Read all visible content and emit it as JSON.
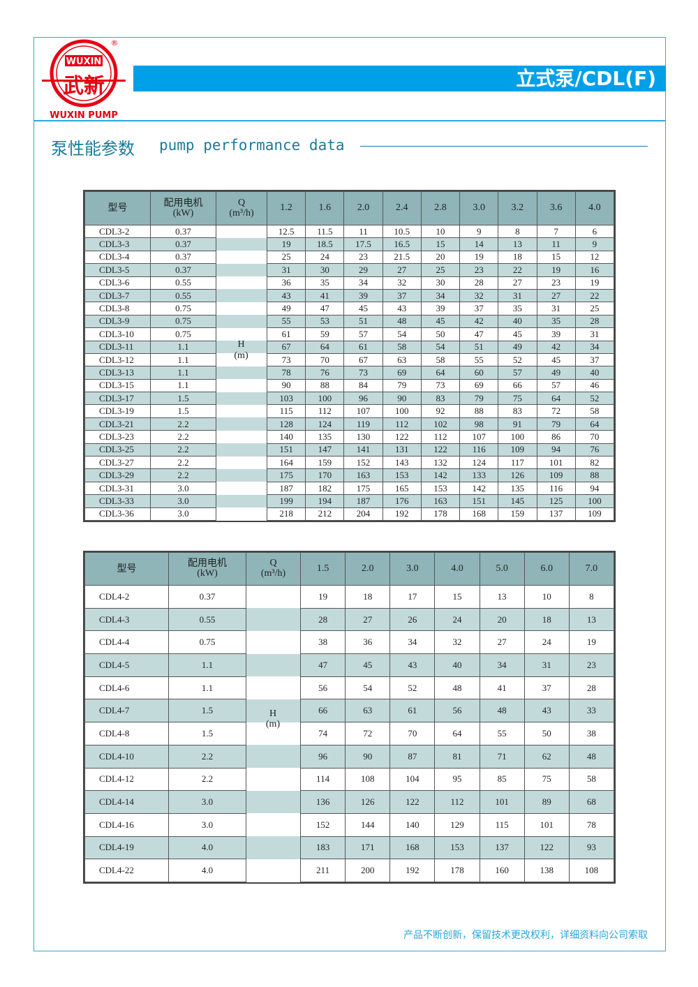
{
  "header": {
    "brand_cn": "武新",
    "brand_en": "WUXIN",
    "brand_sub": "WUXIN PUMP",
    "registered": "®",
    "title": "立式泵/CDL(F)"
  },
  "section": {
    "title_cn": "泵性能参数",
    "title_en": "pump performance data"
  },
  "colors": {
    "accent": "#00a0e9",
    "header_cell": "#8fb5b8",
    "stripe": "#c3dadb",
    "logo": "#e60012"
  },
  "tables": [
    {
      "headers": {
        "model": "型号",
        "motor": "配用电机",
        "motor_unit": "(kW)",
        "q": "Q",
        "q_unit": "(m³/h)",
        "h": "H",
        "h_unit": "(m)"
      },
      "flows": [
        "1.2",
        "1.6",
        "2.0",
        "2.4",
        "2.8",
        "3.0",
        "3.2",
        "3.6",
        "4.0"
      ],
      "rows": [
        {
          "model": "CDL3-2",
          "kw": "0.37",
          "h": [
            "12.5",
            "11.5",
            "11",
            "10.5",
            "10",
            "9",
            "8",
            "7",
            "6"
          ]
        },
        {
          "model": "CDL3-3",
          "kw": "0.37",
          "h": [
            "19",
            "18.5",
            "17.5",
            "16.5",
            "15",
            "14",
            "13",
            "11",
            "9"
          ]
        },
        {
          "model": "CDL3-4",
          "kw": "0.37",
          "h": [
            "25",
            "24",
            "23",
            "21.5",
            "20",
            "19",
            "18",
            "15",
            "12"
          ]
        },
        {
          "model": "CDL3-5",
          "kw": "0.37",
          "h": [
            "31",
            "30",
            "29",
            "27",
            "25",
            "23",
            "22",
            "19",
            "16"
          ]
        },
        {
          "model": "CDL3-6",
          "kw": "0.55",
          "h": [
            "36",
            "35",
            "34",
            "32",
            "30",
            "28",
            "27",
            "23",
            "19"
          ]
        },
        {
          "model": "CDL3-7",
          "kw": "0.55",
          "h": [
            "43",
            "41",
            "39",
            "37",
            "34",
            "32",
            "31",
            "27",
            "22"
          ]
        },
        {
          "model": "CDL3-8",
          "kw": "0.75",
          "h": [
            "49",
            "47",
            "45",
            "43",
            "39",
            "37",
            "35",
            "31",
            "25"
          ]
        },
        {
          "model": "CDL3-9",
          "kw": "0.75",
          "h": [
            "55",
            "53",
            "51",
            "48",
            "45",
            "42",
            "40",
            "35",
            "28"
          ]
        },
        {
          "model": "CDL3-10",
          "kw": "0.75",
          "h": [
            "61",
            "59",
            "57",
            "54",
            "50",
            "47",
            "45",
            "39",
            "31"
          ]
        },
        {
          "model": "CDL3-11",
          "kw": "1.1",
          "h": [
            "67",
            "64",
            "61",
            "58",
            "54",
            "51",
            "49",
            "42",
            "34"
          ]
        },
        {
          "model": "CDL3-12",
          "kw": "1.1",
          "h": [
            "73",
            "70",
            "67",
            "63",
            "58",
            "55",
            "52",
            "45",
            "37"
          ]
        },
        {
          "model": "CDL3-13",
          "kw": "1.1",
          "h": [
            "78",
            "76",
            "73",
            "69",
            "64",
            "60",
            "57",
            "49",
            "40"
          ]
        },
        {
          "model": "CDL3-15",
          "kw": "1.1",
          "h": [
            "90",
            "88",
            "84",
            "79",
            "73",
            "69",
            "66",
            "57",
            "46"
          ]
        },
        {
          "model": "CDL3-17",
          "kw": "1.5",
          "h": [
            "103",
            "100",
            "96",
            "90",
            "83",
            "79",
            "75",
            "64",
            "52"
          ]
        },
        {
          "model": "CDL3-19",
          "kw": "1.5",
          "h": [
            "115",
            "112",
            "107",
            "100",
            "92",
            "88",
            "83",
            "72",
            "58"
          ]
        },
        {
          "model": "CDL3-21",
          "kw": "2.2",
          "h": [
            "128",
            "124",
            "119",
            "112",
            "102",
            "98",
            "91",
            "79",
            "64"
          ]
        },
        {
          "model": "CDL3-23",
          "kw": "2.2",
          "h": [
            "140",
            "135",
            "130",
            "122",
            "112",
            "107",
            "100",
            "86",
            "70"
          ]
        },
        {
          "model": "CDL3-25",
          "kw": "2.2",
          "h": [
            "151",
            "147",
            "141",
            "131",
            "122",
            "116",
            "109",
            "94",
            "76"
          ]
        },
        {
          "model": "CDL3-27",
          "kw": "2.2",
          "h": [
            "164",
            "159",
            "152",
            "143",
            "132",
            "124",
            "117",
            "101",
            "82"
          ]
        },
        {
          "model": "CDL3-29",
          "kw": "2.2",
          "h": [
            "175",
            "170",
            "163",
            "153",
            "142",
            "133",
            "126",
            "109",
            "88"
          ]
        },
        {
          "model": "CDL3-31",
          "kw": "3.0",
          "h": [
            "187",
            "182",
            "175",
            "165",
            "153",
            "142",
            "135",
            "116",
            "94"
          ]
        },
        {
          "model": "CDL3-33",
          "kw": "3.0",
          "h": [
            "199",
            "194",
            "187",
            "176",
            "163",
            "151",
            "145",
            "125",
            "100"
          ]
        },
        {
          "model": "CDL3-36",
          "kw": "3.0",
          "h": [
            "218",
            "212",
            "204",
            "192",
            "178",
            "168",
            "159",
            "137",
            "109"
          ]
        }
      ]
    },
    {
      "headers": {
        "model": "型号",
        "motor": "配用电机",
        "motor_unit": "(kW)",
        "q": "Q",
        "q_unit": "(m³/h)",
        "h": "H",
        "h_unit": "(m)"
      },
      "flows": [
        "1.5",
        "2.0",
        "3.0",
        "4.0",
        "5.0",
        "6.0",
        "7.0"
      ],
      "rows": [
        {
          "model": "CDL4-2",
          "kw": "0.37",
          "h": [
            "19",
            "18",
            "17",
            "15",
            "13",
            "10",
            "8"
          ]
        },
        {
          "model": "CDL4-3",
          "kw": "0.55",
          "h": [
            "28",
            "27",
            "26",
            "24",
            "20",
            "18",
            "13"
          ]
        },
        {
          "model": "CDL4-4",
          "kw": "0.75",
          "h": [
            "38",
            "36",
            "34",
            "32",
            "27",
            "24",
            "19"
          ]
        },
        {
          "model": "CDL4-5",
          "kw": "1.1",
          "h": [
            "47",
            "45",
            "43",
            "40",
            "34",
            "31",
            "23"
          ]
        },
        {
          "model": "CDL4-6",
          "kw": "1.1",
          "h": [
            "56",
            "54",
            "52",
            "48",
            "41",
            "37",
            "28"
          ]
        },
        {
          "model": "CDL4-7",
          "kw": "1.5",
          "h": [
            "66",
            "63",
            "61",
            "56",
            "48",
            "43",
            "33"
          ]
        },
        {
          "model": "CDL4-8",
          "kw": "1.5",
          "h": [
            "74",
            "72",
            "70",
            "64",
            "55",
            "50",
            "38"
          ]
        },
        {
          "model": "CDL4-10",
          "kw": "2.2",
          "h": [
            "96",
            "90",
            "87",
            "81",
            "71",
            "62",
            "48"
          ]
        },
        {
          "model": "CDL4-12",
          "kw": "2.2",
          "h": [
            "114",
            "108",
            "104",
            "95",
            "85",
            "75",
            "58"
          ]
        },
        {
          "model": "CDL4-14",
          "kw": "3.0",
          "h": [
            "136",
            "126",
            "122",
            "112",
            "101",
            "89",
            "68"
          ]
        },
        {
          "model": "CDL4-16",
          "kw": "3.0",
          "h": [
            "152",
            "144",
            "140",
            "129",
            "115",
            "101",
            "78"
          ]
        },
        {
          "model": "CDL4-19",
          "kw": "4.0",
          "h": [
            "183",
            "171",
            "168",
            "153",
            "137",
            "122",
            "93"
          ]
        },
        {
          "model": "CDL4-22",
          "kw": "4.0",
          "h": [
            "211",
            "200",
            "192",
            "178",
            "160",
            "138",
            "108"
          ]
        }
      ]
    }
  ],
  "footer": {
    "note": "产品不断创新，保留技术更改权利，详细资料向公司索取"
  }
}
